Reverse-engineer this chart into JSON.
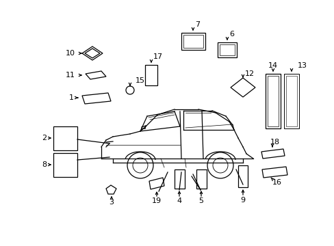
{
  "bg_color": "#ffffff",
  "line_color": "#000000",
  "figsize": [
    4.89,
    3.6
  ],
  "dpi": 100,
  "xlim": [
    0,
    489
  ],
  "ylim": [
    360,
    0
  ]
}
